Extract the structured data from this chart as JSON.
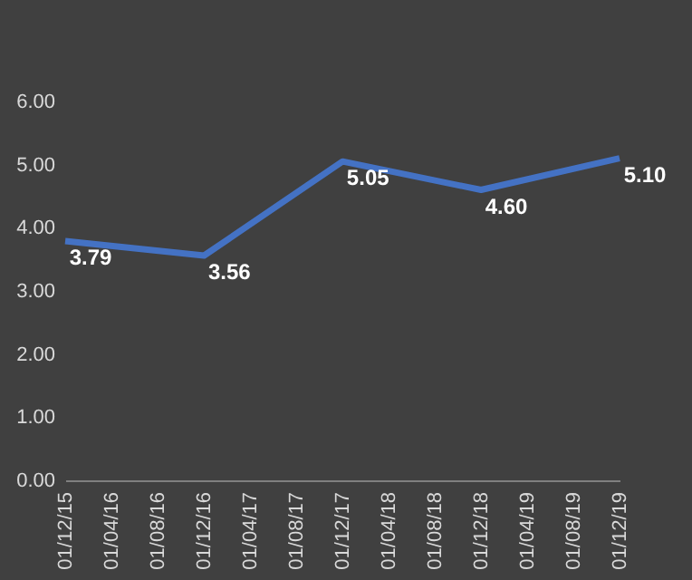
{
  "chart_data": {
    "type": "line",
    "x": [
      "2015-12-01",
      "2016-12-01",
      "2017-12-01",
      "2018-12-01",
      "2019-12-01"
    ],
    "series": [
      {
        "color": "#4472c4",
        "values": [
          3.79,
          3.56,
          5.05,
          4.6,
          5.1
        ],
        "value_labels": [
          "3.79",
          "3.56",
          "5.05",
          "4.60",
          "5.10"
        ]
      }
    ],
    "xlim": [
      "2015-12-01",
      "2019-12-01"
    ],
    "xticks": [
      {
        "value": "2015-12-01",
        "label": "01/12/15"
      },
      {
        "value": "2016-04-01",
        "label": "01/04/16"
      },
      {
        "value": "2016-08-01",
        "label": "01/08/16"
      },
      {
        "value": "2016-12-01",
        "label": "01/12/16"
      },
      {
        "value": "2017-04-01",
        "label": "01/04/17"
      },
      {
        "value": "2017-08-01",
        "label": "01/08/17"
      },
      {
        "value": "2017-12-01",
        "label": "01/12/17"
      },
      {
        "value": "2018-04-01",
        "label": "01/04/18"
      },
      {
        "value": "2018-08-01",
        "label": "01/08/18"
      },
      {
        "value": "2018-12-01",
        "label": "01/12/18"
      },
      {
        "value": "2019-04-01",
        "label": "01/04/19"
      },
      {
        "value": "2019-08-01",
        "label": "01/08/19"
      },
      {
        "value": "2019-12-01",
        "label": "01/12/19"
      }
    ],
    "ylim": [
      0,
      6
    ],
    "yticks": [
      {
        "value": 0,
        "label": "0.00"
      },
      {
        "value": 1,
        "label": "1.00"
      },
      {
        "value": 2,
        "label": "2.00"
      },
      {
        "value": 3,
        "label": "3.00"
      },
      {
        "value": 4,
        "label": "4.00"
      },
      {
        "value": 5,
        "label": "5.00"
      },
      {
        "value": 6,
        "label": "6.00"
      }
    ],
    "grid": false,
    "legend": false,
    "marker": "none"
  }
}
